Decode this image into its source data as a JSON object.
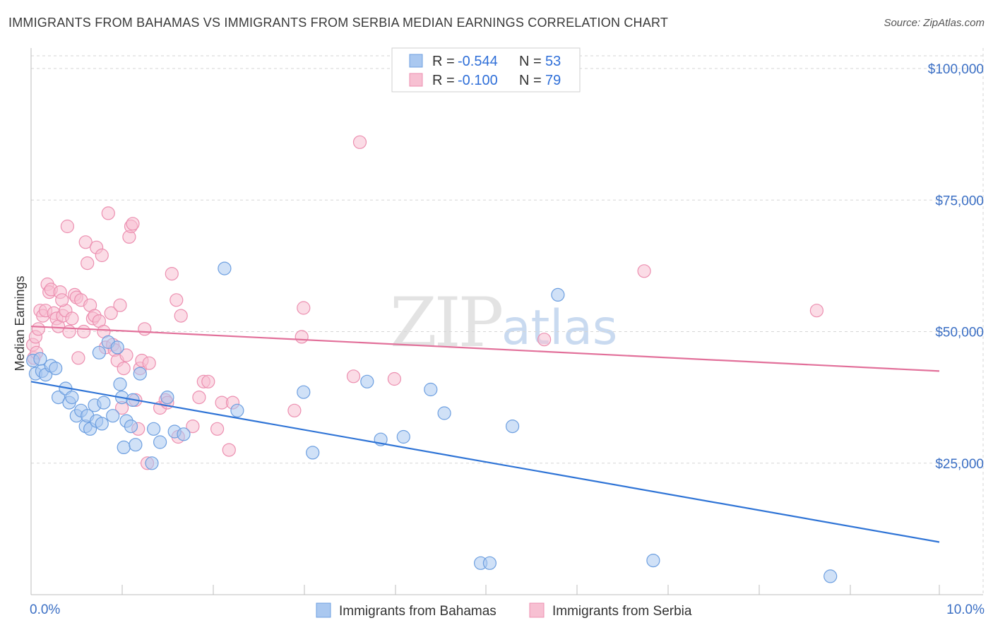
{
  "header": {
    "title": "IMMIGRANTS FROM BAHAMAS VS IMMIGRANTS FROM SERBIA MEDIAN EARNINGS CORRELATION CHART",
    "source": "Source: ZipAtlas.com"
  },
  "watermark": {
    "part1": "ZIP",
    "part2": "atlas"
  },
  "legend": {
    "rows": [
      {
        "r_label": "R = ",
        "r_value": "-0.544",
        "n_label": "N = ",
        "n_value": "53"
      },
      {
        "r_label": "R = ",
        "r_value": "-0.100",
        "n_label": "N = ",
        "n_value": "79"
      }
    ]
  },
  "bottom_legend": [
    "Immigrants from Bahamas",
    "Immigrants from Serbia"
  ],
  "colors": {
    "bahamas_fill": "#aac8f0",
    "bahamas_stroke": "#6d9fe0",
    "bahamas_line": "#2f74d6",
    "serbia_fill": "#f7c0d2",
    "serbia_stroke": "#ec8fb0",
    "serbia_line": "#e2709a",
    "grid": "#d6d6d6",
    "axis_text": "#3b6fc4"
  },
  "chart_data": {
    "type": "scatter",
    "title": "IMMIGRANTS FROM BAHAMAS VS IMMIGRANTS FROM SERBIA MEDIAN EARNINGS CORRELATION CHART",
    "xlabel": "",
    "ylabel": "Median Earnings",
    "xlim": [
      0,
      10
    ],
    "ylim": [
      0,
      102000
    ],
    "x_tick_labels": [
      "0.0%",
      "10.0%"
    ],
    "y_ticks": [
      {
        "value": 25000,
        "label": "$25,000"
      },
      {
        "value": 50000,
        "label": "$50,000"
      },
      {
        "value": 75000,
        "label": "$75,000"
      },
      {
        "value": 100000,
        "label": "$100,000"
      }
    ],
    "series": [
      {
        "name": "Immigrants from Bahamas",
        "r": -0.544,
        "n": 53,
        "trend": {
          "x": [
            0.0,
            10.0
          ],
          "y": [
            40500,
            10000
          ]
        },
        "points": [
          [
            0.02,
            44500
          ],
          [
            0.05,
            42000
          ],
          [
            0.1,
            44800
          ],
          [
            0.12,
            42500
          ],
          [
            0.16,
            41800
          ],
          [
            0.22,
            43500
          ],
          [
            0.27,
            43000
          ],
          [
            0.3,
            37500
          ],
          [
            0.38,
            39200
          ],
          [
            0.42,
            36500
          ],
          [
            0.45,
            37500
          ],
          [
            0.5,
            34000
          ],
          [
            0.55,
            35000
          ],
          [
            0.6,
            32000
          ],
          [
            0.62,
            34000
          ],
          [
            0.65,
            31500
          ],
          [
            0.7,
            36000
          ],
          [
            0.72,
            33000
          ],
          [
            0.75,
            46000
          ],
          [
            0.78,
            32500
          ],
          [
            0.8,
            36500
          ],
          [
            0.85,
            48000
          ],
          [
            0.9,
            34000
          ],
          [
            0.95,
            47000
          ],
          [
            0.98,
            40000
          ],
          [
            1.0,
            37500
          ],
          [
            1.02,
            28000
          ],
          [
            1.05,
            33000
          ],
          [
            1.1,
            32000
          ],
          [
            1.12,
            37000
          ],
          [
            1.15,
            28500
          ],
          [
            1.2,
            42000
          ],
          [
            1.33,
            25000
          ],
          [
            1.35,
            31500
          ],
          [
            1.42,
            29000
          ],
          [
            1.5,
            37500
          ],
          [
            1.58,
            31000
          ],
          [
            1.68,
            30500
          ],
          [
            2.13,
            62000
          ],
          [
            2.27,
            35000
          ],
          [
            3.0,
            38500
          ],
          [
            3.1,
            27000
          ],
          [
            3.7,
            40500
          ],
          [
            3.85,
            29500
          ],
          [
            4.1,
            30000
          ],
          [
            4.4,
            39000
          ],
          [
            4.55,
            34500
          ],
          [
            4.95,
            6000
          ],
          [
            5.05,
            6000
          ],
          [
            5.3,
            32000
          ],
          [
            5.8,
            57000
          ],
          [
            6.85,
            6500
          ],
          [
            8.8,
            3500
          ]
        ]
      },
      {
        "name": "Immigrants from Serbia",
        "r": -0.1,
        "n": 79,
        "trend": {
          "x": [
            0.0,
            10.0
          ],
          "y": [
            51000,
            42500
          ]
        },
        "points": [
          [
            0.02,
            47500
          ],
          [
            0.03,
            45000
          ],
          [
            0.05,
            49000
          ],
          [
            0.08,
            50500
          ],
          [
            0.1,
            54000
          ],
          [
            0.13,
            53000
          ],
          [
            0.16,
            54000
          ],
          [
            0.18,
            59000
          ],
          [
            0.2,
            57500
          ],
          [
            0.22,
            58000
          ],
          [
            0.25,
            53500
          ],
          [
            0.28,
            52500
          ],
          [
            0.3,
            51000
          ],
          [
            0.32,
            57500
          ],
          [
            0.35,
            53000
          ],
          [
            0.38,
            54000
          ],
          [
            0.4,
            70000
          ],
          [
            0.42,
            50000
          ],
          [
            0.45,
            52500
          ],
          [
            0.48,
            57000
          ],
          [
            0.5,
            56500
          ],
          [
            0.52,
            45000
          ],
          [
            0.55,
            56000
          ],
          [
            0.58,
            50000
          ],
          [
            0.6,
            67000
          ],
          [
            0.62,
            63000
          ],
          [
            0.65,
            55000
          ],
          [
            0.68,
            52500
          ],
          [
            0.7,
            53000
          ],
          [
            0.72,
            66000
          ],
          [
            0.75,
            52000
          ],
          [
            0.78,
            64500
          ],
          [
            0.8,
            50000
          ],
          [
            0.82,
            47000
          ],
          [
            0.85,
            72500
          ],
          [
            0.88,
            53500
          ],
          [
            0.9,
            47500
          ],
          [
            0.92,
            46500
          ],
          [
            0.95,
            44500
          ],
          [
            0.98,
            55000
          ],
          [
            1.0,
            35500
          ],
          [
            1.02,
            43000
          ],
          [
            1.05,
            45500
          ],
          [
            1.08,
            68000
          ],
          [
            1.1,
            70000
          ],
          [
            1.12,
            70500
          ],
          [
            1.15,
            37000
          ],
          [
            1.18,
            31500
          ],
          [
            1.2,
            43000
          ],
          [
            1.22,
            44500
          ],
          [
            1.25,
            50500
          ],
          [
            1.28,
            25000
          ],
          [
            1.3,
            44000
          ],
          [
            1.42,
            35500
          ],
          [
            1.48,
            37000
          ],
          [
            1.5,
            36500
          ],
          [
            1.55,
            61000
          ],
          [
            1.6,
            56000
          ],
          [
            1.62,
            30000
          ],
          [
            1.65,
            53000
          ],
          [
            1.78,
            32000
          ],
          [
            1.85,
            37500
          ],
          [
            1.9,
            40500
          ],
          [
            1.95,
            40500
          ],
          [
            2.05,
            31500
          ],
          [
            2.1,
            36500
          ],
          [
            2.18,
            27500
          ],
          [
            2.22,
            36500
          ],
          [
            2.9,
            35000
          ],
          [
            2.98,
            49000
          ],
          [
            3.0,
            54500
          ],
          [
            3.55,
            41500
          ],
          [
            3.62,
            86000
          ],
          [
            4.0,
            41000
          ],
          [
            5.65,
            48500
          ],
          [
            6.75,
            61500
          ],
          [
            8.65,
            54000
          ],
          [
            0.06,
            46000
          ],
          [
            0.34,
            56000
          ]
        ]
      }
    ]
  }
}
